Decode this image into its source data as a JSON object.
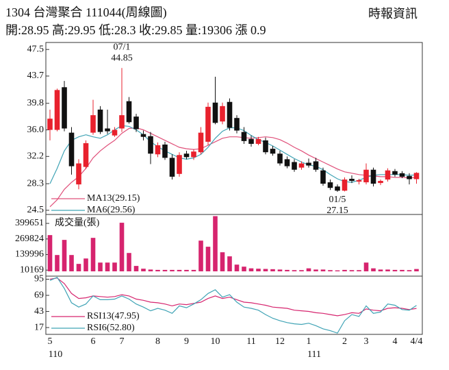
{
  "header": {
    "title": "1304  台灣聚合 111044(周線圖)",
    "source": "時報資訊",
    "quote": "開:28.95 高:29.95 低:28.3 收:29.85 量:19306 漲 0.9"
  },
  "chart_data": [
    {
      "type": "candlestick",
      "up_color": "#e8212d",
      "down_color": "#111111",
      "open": [
        36.0,
        36.0,
        42.1,
        35.6,
        28.2,
        30.7,
        35.6,
        38.9,
        36.2,
        35.2,
        36.2,
        40.1,
        37.9,
        35.4,
        35.1,
        32.5,
        33.9,
        32.0,
        29.7,
        32.6,
        32.1,
        32.8,
        34.3,
        39.9,
        37.2,
        40.0,
        37.7,
        35.7,
        34.7,
        34.0,
        34.5,
        33.3,
        32.6,
        31.8,
        31.4,
        30.6,
        31.3,
        31.5,
        30.2,
        28.5,
        27.9,
        27.3,
        29.0,
        28.6,
        28.5,
        30.3,
        28.4,
        28.9,
        30.1,
        29.8,
        29.4,
        28.95
      ],
      "high": [
        38.9,
        41.9,
        43.0,
        36.4,
        31.8,
        34.5,
        40.3,
        39.4,
        38.9,
        36.4,
        44.85,
        40.7,
        38.3,
        35.9,
        35.7,
        34.2,
        34.3,
        32.5,
        32.8,
        33.0,
        33.2,
        36.4,
        39.9,
        43.6,
        39.9,
        40.5,
        38.1,
        36.4,
        35.2,
        35.0,
        34.9,
        33.7,
        33.0,
        32.2,
        31.8,
        31.5,
        31.9,
        32.0,
        30.6,
        28.9,
        28.2,
        29.2,
        29.5,
        29.0,
        31.2,
        30.6,
        28.9,
        30.5,
        30.4,
        30.1,
        29.8,
        29.95
      ],
      "low": [
        34.5,
        35.8,
        35.8,
        29.6,
        27.5,
        30.4,
        35.3,
        35.4,
        35.4,
        35.0,
        35.7,
        36.9,
        35.7,
        34.5,
        31.1,
        32.1,
        31.7,
        28.9,
        29.3,
        31.8,
        31.7,
        32.5,
        33.8,
        36.8,
        36.8,
        35.9,
        35.5,
        34.0,
        33.6,
        33.8,
        32.5,
        32.3,
        30.9,
        30.5,
        30.0,
        30.3,
        30.6,
        30.0,
        28.0,
        27.4,
        27.15,
        27.2,
        28.4,
        28.2,
        28.2,
        27.9,
        28.1,
        28.6,
        29.3,
        29.1,
        28.2,
        28.3
      ],
      "close": [
        37.6,
        41.7,
        36.2,
        30.8,
        31.2,
        34.1,
        38.1,
        35.7,
        35.8,
        36.0,
        38.1,
        37.1,
        36.1,
        35.0,
        32.6,
        33.8,
        32.0,
        29.3,
        32.4,
        32.1,
        32.9,
        35.6,
        39.3,
        37.0,
        39.4,
        36.3,
        35.9,
        34.4,
        34.0,
        34.7,
        32.8,
        32.6,
        31.2,
        30.8,
        30.3,
        31.2,
        30.9,
        30.3,
        28.3,
        27.7,
        27.3,
        28.9,
        28.7,
        28.8,
        30.3,
        28.3,
        28.7,
        30.2,
        29.6,
        29.3,
        28.95,
        29.85
      ],
      "series": [
        {
          "name": "MA13(29.15)",
          "color": "#e0507a",
          "values": [
            25.0,
            26.0,
            27.5,
            28.5,
            29.3,
            30.5,
            32.0,
            33.0,
            33.8,
            34.5,
            35.5,
            36.2,
            36.3,
            36.0,
            35.5,
            35.0,
            34.5,
            34.0,
            33.5,
            33.3,
            33.2,
            33.3,
            33.8,
            34.3,
            34.8,
            35.0,
            35.0,
            34.9,
            34.8,
            34.9,
            35.0,
            34.9,
            34.6,
            34.1,
            33.5,
            33.0,
            32.4,
            31.9,
            31.4,
            30.9,
            30.4,
            30.0,
            29.8,
            29.6,
            29.5,
            29.4,
            29.3,
            29.3,
            29.2,
            29.2,
            29.15,
            29.15
          ]
        },
        {
          "name": "MA6(29.56)",
          "color": "#3fa3b5",
          "values": [
            28.3,
            30.5,
            33.0,
            34.5,
            35.0,
            35.3,
            35.0,
            34.8,
            35.3,
            36.0,
            36.6,
            36.5,
            36.0,
            35.3,
            34.3,
            33.6,
            33.0,
            32.5,
            32.0,
            31.8,
            32.0,
            32.5,
            33.5,
            34.8,
            35.8,
            36.3,
            36.3,
            35.9,
            35.2,
            34.6,
            34.2,
            33.7,
            33.1,
            32.5,
            31.9,
            31.4,
            31.0,
            30.8,
            30.3,
            29.6,
            29.0,
            28.6,
            28.5,
            28.8,
            29.2,
            29.5,
            29.6,
            29.6,
            29.6,
            29.6,
            29.5,
            29.56
          ]
        }
      ],
      "annotations": [
        {
          "date": "07/1",
          "value": 44.85,
          "list": "high"
        },
        {
          "date": "01/5",
          "value": 27.15,
          "list": "low"
        }
      ],
      "ylim": [
        23.9,
        48.5
      ],
      "yticks": [
        47.5,
        43.7,
        39.8,
        {
          "value": 36,
          "label": "36.0"
        },
        32.2,
        28.3,
        24.5
      ]
    },
    {
      "type": "bar",
      "title": "成交量(張)",
      "color": "#d6246e",
      "values": [
        302000,
        136000,
        262000,
        136000,
        62000,
        107000,
        279000,
        73000,
        73000,
        73000,
        405000,
        153000,
        45000,
        22000,
        15000,
        12000,
        12000,
        12000,
        12000,
        12000,
        12000,
        256000,
        205000,
        460000,
        159000,
        125000,
        56000,
        39000,
        25000,
        22000,
        20000,
        18000,
        15000,
        12000,
        10000,
        10000,
        25000,
        15000,
        15000,
        10000,
        8000,
        12000,
        10000,
        10000,
        73000,
        25000,
        15000,
        15000,
        12000,
        12000,
        10000,
        19306
      ],
      "ylim": [
        -40000,
        474000
      ],
      "yticks": [
        399651,
        269824,
        139996,
        10169
      ]
    },
    {
      "type": "line",
      "categories": [
        "5",
        null,
        null,
        null,
        null,
        null,
        "6",
        null,
        null,
        null,
        "7",
        null,
        null,
        null,
        null,
        "8",
        null,
        null,
        null,
        "9",
        null,
        null,
        null,
        "10",
        null,
        null,
        null,
        null,
        "11",
        null,
        null,
        null,
        "12",
        null,
        null,
        null,
        "1",
        null,
        null,
        null,
        null,
        "2",
        null,
        null,
        "3",
        null,
        null,
        null,
        "4",
        null,
        null,
        "4/4"
      ],
      "x_sublabels": [
        "110",
        null,
        null,
        null,
        null,
        null,
        null,
        null,
        null,
        null,
        null,
        null,
        null,
        null,
        null,
        null,
        null,
        null,
        null,
        null,
        null,
        null,
        null,
        null,
        null,
        null,
        null,
        null,
        null,
        null,
        null,
        null,
        null,
        null,
        null,
        null,
        "111",
        null,
        null,
        null,
        null,
        null,
        null,
        null,
        null,
        null,
        null,
        null,
        null,
        null,
        null,
        null
      ],
      "series": [
        {
          "name": "RSI13(47.95)",
          "color": "#d6246e",
          "values": [
            95,
            97,
            88,
            72,
            64,
            65,
            68,
            67,
            66,
            67,
            70,
            68,
            63,
            61,
            58,
            57,
            55,
            52,
            55,
            54,
            56,
            58,
            64,
            68,
            64,
            66,
            62,
            58,
            57,
            55,
            53,
            50,
            49,
            48,
            45,
            44,
            43,
            41,
            40,
            38,
            36,
            38,
            41,
            40,
            47,
            45,
            44,
            48,
            49,
            48,
            46,
            47.95
          ]
        },
        {
          "name": "RSI6(52.80)",
          "color": "#3fa3b5",
          "values": [
            93,
            98,
            80,
            57,
            50,
            55,
            68,
            62,
            62,
            63,
            68,
            63,
            55,
            50,
            44,
            48,
            45,
            40,
            52,
            49,
            55,
            62,
            72,
            78,
            66,
            70,
            58,
            50,
            48,
            45,
            38,
            32,
            28,
            25,
            23,
            22,
            24,
            20,
            15,
            12,
            8,
            28,
            38,
            35,
            52,
            40,
            42,
            55,
            53,
            46,
            45,
            52.8
          ]
        }
      ],
      "ylim": [
        6,
        100
      ],
      "yticks": [
        95,
        69,
        43,
        17
      ]
    }
  ]
}
